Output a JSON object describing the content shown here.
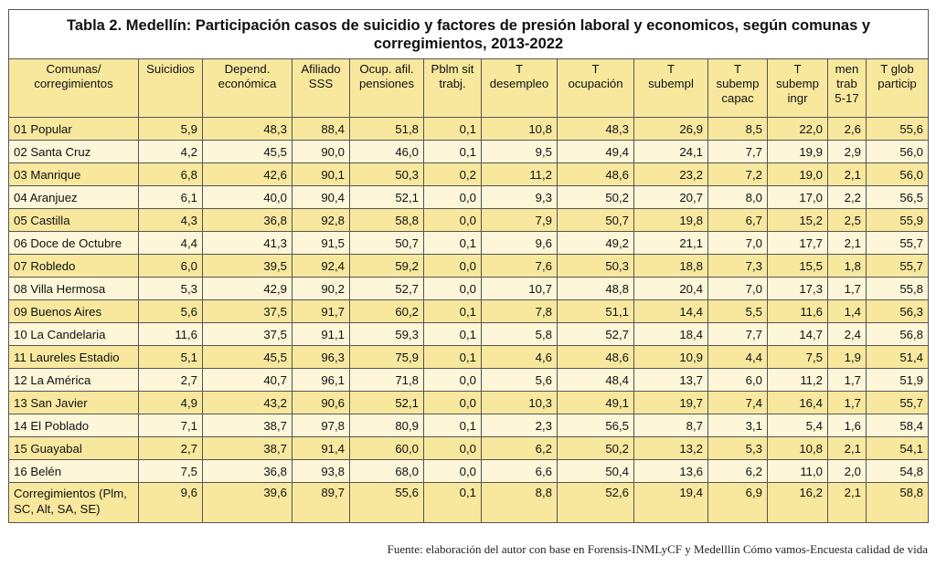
{
  "title": "Tabla 2. Medellín: Participación casos de suicidio y factores de presión laboral y economicos, según comunas y corregimientos, 2013-2022",
  "columns": [
    [
      "Comunas/",
      "corregimientos"
    ],
    [
      "Suicidios"
    ],
    [
      "Depend.",
      "económica"
    ],
    [
      "Afiliado",
      "SSS"
    ],
    [
      "Ocup. afil.",
      "pensiones"
    ],
    [
      "Pblm sit",
      "trabj."
    ],
    [
      "T",
      "desempleo"
    ],
    [
      "T",
      "ocupación"
    ],
    [
      "T",
      "subempl"
    ],
    [
      "T",
      "subemp",
      "capac"
    ],
    [
      "T",
      "subemp",
      "ingr"
    ],
    [
      "men",
      "trab",
      "5-17"
    ],
    [
      "T glob",
      "particip"
    ]
  ],
  "rows": [
    [
      "01 Popular",
      "5,9",
      "48,3",
      "88,4",
      "51,8",
      "0,1",
      "10,8",
      "48,3",
      "26,9",
      "8,5",
      "22,0",
      "2,6",
      "55,6"
    ],
    [
      "02 Santa Cruz",
      "4,2",
      "45,5",
      "90,0",
      "46,0",
      "0,1",
      "9,5",
      "49,4",
      "24,1",
      "7,7",
      "19,9",
      "2,9",
      "56,0"
    ],
    [
      "03 Manrique",
      "6,8",
      "42,6",
      "90,1",
      "50,3",
      "0,2",
      "11,2",
      "48,6",
      "23,2",
      "7,2",
      "19,0",
      "2,1",
      "56,0"
    ],
    [
      "04 Aranjuez",
      "6,1",
      "40,0",
      "90,4",
      "52,1",
      "0,0",
      "9,3",
      "50,2",
      "20,7",
      "8,0",
      "17,0",
      "2,2",
      "56,5"
    ],
    [
      "05 Castilla",
      "4,3",
      "36,8",
      "92,8",
      "58,8",
      "0,0",
      "7,9",
      "50,7",
      "19,8",
      "6,7",
      "15,2",
      "2,5",
      "55,9"
    ],
    [
      "06 Doce de Octubre",
      "4,4",
      "41,3",
      "91,5",
      "50,7",
      "0,1",
      "9,6",
      "49,2",
      "21,1",
      "7,0",
      "17,7",
      "2,1",
      "55,7"
    ],
    [
      "07 Robledo",
      "6,0",
      "39,5",
      "92,4",
      "59,2",
      "0,0",
      "7,6",
      "50,3",
      "18,8",
      "7,3",
      "15,5",
      "1,8",
      "55,7"
    ],
    [
      "08 Villa Hermosa",
      "5,3",
      "42,9",
      "90,2",
      "52,7",
      "0,0",
      "10,7",
      "48,8",
      "20,4",
      "7,0",
      "17,3",
      "1,7",
      "55,8"
    ],
    [
      "09 Buenos Aires",
      "5,6",
      "37,5",
      "91,7",
      "60,2",
      "0,1",
      "7,8",
      "51,1",
      "14,4",
      "5,5",
      "11,6",
      "1,4",
      "56,3"
    ],
    [
      "10 La Candelaria",
      "11,6",
      "37,5",
      "91,1",
      "59,3",
      "0,1",
      "5,8",
      "52,7",
      "18,4",
      "7,7",
      "14,7",
      "2,4",
      "56,8"
    ],
    [
      "11 Laureles Estadio",
      "5,1",
      "45,5",
      "96,3",
      "75,9",
      "0,1",
      "4,6",
      "48,6",
      "10,9",
      "4,4",
      "7,5",
      "1,9",
      "51,4"
    ],
    [
      "12 La América",
      "2,7",
      "40,7",
      "96,1",
      "71,8",
      "0,0",
      "5,6",
      "48,4",
      "13,7",
      "6,0",
      "11,2",
      "1,7",
      "51,9"
    ],
    [
      "13 San Javier",
      "4,9",
      "43,2",
      "90,6",
      "52,1",
      "0,0",
      "10,3",
      "49,1",
      "19,7",
      "7,4",
      "16,4",
      "1,7",
      "55,7"
    ],
    [
      "14 El Poblado",
      "7,1",
      "38,7",
      "97,8",
      "80,9",
      "0,1",
      "2,3",
      "56,5",
      "8,7",
      "3,1",
      "5,4",
      "1,6",
      "58,4"
    ],
    [
      "15 Guayabal",
      "2,7",
      "38,7",
      "91,4",
      "60,0",
      "0,0",
      "6,2",
      "50,2",
      "13,2",
      "5,3",
      "10,8",
      "2,1",
      "54,1"
    ],
    [
      "16 Belén",
      "7,5",
      "36,8",
      "93,8",
      "68,0",
      "0,0",
      "6,6",
      "50,4",
      "13,6",
      "6,2",
      "11,0",
      "2,0",
      "54,8"
    ],
    [
      "Corregimientos (Plm, SC, Alt, SA, SE)",
      "9,6",
      "39,6",
      "89,7",
      "55,6",
      "0,1",
      "8,8",
      "52,6",
      "19,4",
      "6,9",
      "16,2",
      "2,1",
      "58,8"
    ]
  ],
  "source": "Fuente: elaboración del autor con base en Forensis-INMLyCF y Medelllin Cómo vamos-Encuesta calidad de vida"
}
